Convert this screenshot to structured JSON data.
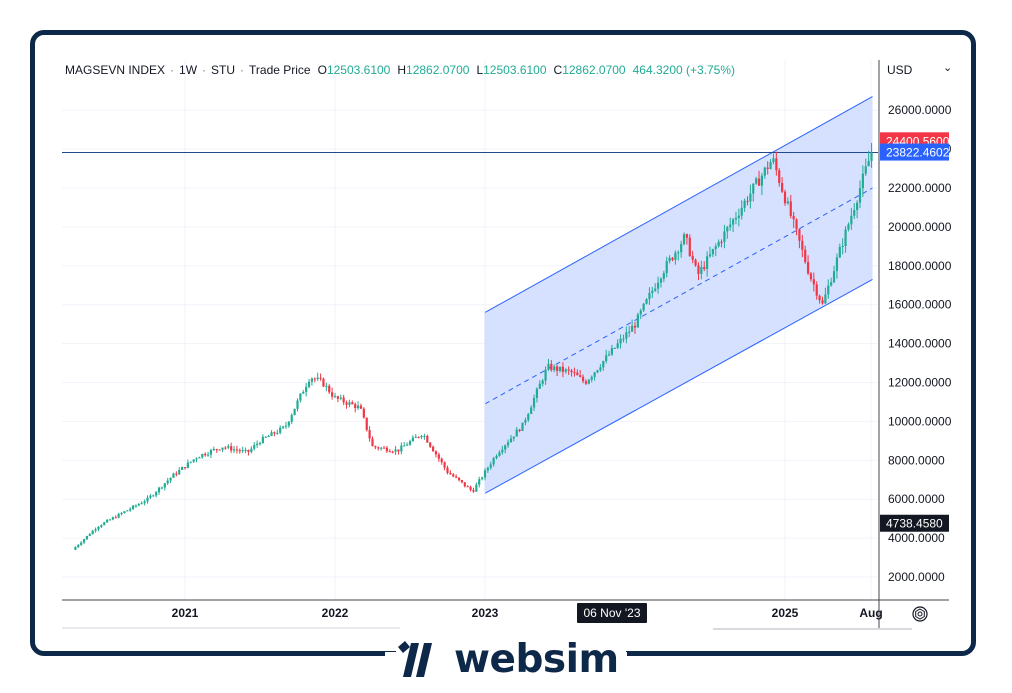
{
  "legend": {
    "symbol": "MAGSEVN INDEX",
    "interval": "1W",
    "exchange": "STU",
    "price_type": "Trade Price",
    "open_label": "O",
    "open": "12503.6100",
    "high_label": "H",
    "high": "12862.0700",
    "low_label": "L",
    "low": "12503.6100",
    "close_label": "C",
    "close": "12862.0700",
    "change": "464.3200 (+3.75%)"
  },
  "axis": {
    "currency": "USD",
    "currency_caret": "⌄"
  },
  "colors": {
    "up": "#22ab94",
    "down": "#f23645",
    "channel_line": "#2962ff",
    "channel_fill": "#cfdcff",
    "frame": "#0d2848"
  },
  "chart_data": {
    "type": "candlestick",
    "ylim": [
      1000,
      27000
    ],
    "y_ticks": [
      "2000.0000",
      "4000.0000",
      "6000.0000",
      "8000.0000",
      "10000.0000",
      "12000.0000",
      "14000.0000",
      "16000.0000",
      "18000.0000",
      "20000.0000",
      "22000.0000",
      "24000.0000",
      "26000.0000"
    ],
    "x_ticks": [
      "2021",
      "2022",
      "2023",
      "2025",
      "Aug"
    ],
    "crosshair_date": "06 Nov '23",
    "price_labels": [
      {
        "text": "24400.5600",
        "value": 24400.56,
        "color": "#f23645"
      },
      {
        "text": "23822.4602",
        "value": 23822.4602,
        "color": "#2962ff"
      },
      {
        "text": "4738.4580",
        "value": 4738.458,
        "color": "#131722"
      }
    ],
    "horizontal_line": 23822.4602,
    "regression_channel": {
      "start_date": "2023-01",
      "end_date": "2025-08",
      "upper": [
        15600,
        26700
      ],
      "center": [
        10900,
        22000
      ],
      "lower": [
        6300,
        17300
      ]
    },
    "close_path": [
      [
        "2020-04",
        3400
      ],
      [
        "2020-06",
        4600
      ],
      [
        "2020-08",
        5300
      ],
      [
        "2020-10",
        6000
      ],
      [
        "2020-12",
        7200
      ],
      [
        "2021-02",
        8200
      ],
      [
        "2021-04",
        8700
      ],
      [
        "2021-06",
        8400
      ],
      [
        "2021-07",
        9000
      ],
      [
        "2021-09",
        9700
      ],
      [
        "2021-11",
        12300
      ],
      [
        "2021-12",
        12000
      ],
      [
        "2022-01",
        11200
      ],
      [
        "2022-03",
        10700
      ],
      [
        "2022-04",
        8700
      ],
      [
        "2022-06",
        8500
      ],
      [
        "2022-08",
        9400
      ],
      [
        "2022-10",
        7400
      ],
      [
        "2022-12",
        6400
      ],
      [
        "2023-02",
        8400
      ],
      [
        "2023-04",
        9800
      ],
      [
        "2023-06",
        12800
      ],
      [
        "2023-08",
        12500
      ],
      [
        "2023-09",
        12000
      ],
      [
        "2023-11",
        13500
      ],
      [
        "2024-01",
        15000
      ],
      [
        "2024-03",
        17500
      ],
      [
        "2024-05",
        19500
      ],
      [
        "2024-06",
        17500
      ],
      [
        "2024-09",
        20500
      ],
      [
        "2024-12",
        23500
      ],
      [
        "2025-01",
        21500
      ],
      [
        "2025-03",
        17500
      ],
      [
        "2025-04",
        16000
      ],
      [
        "2025-06",
        20000
      ],
      [
        "2025-08",
        24000
      ]
    ]
  }
}
